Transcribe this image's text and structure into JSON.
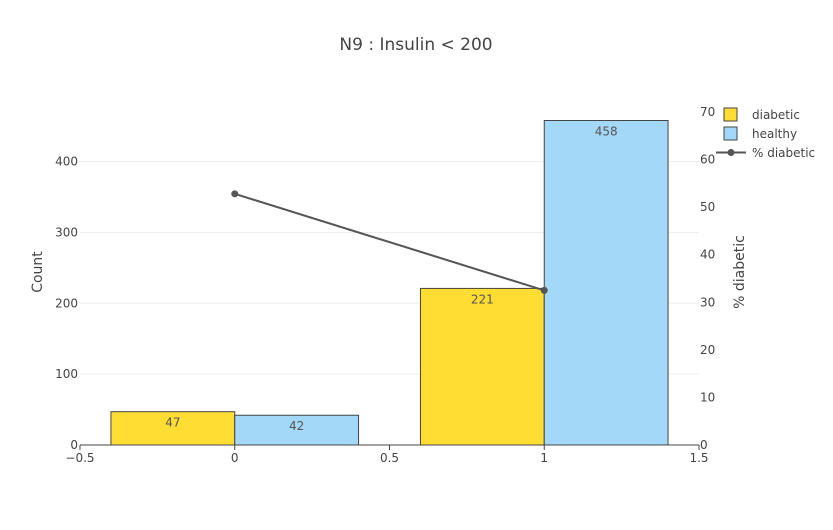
{
  "chart_data": {
    "type": "bar",
    "title": "N9 : Insulin < 200",
    "xlabel": "",
    "ylabel": "Count",
    "y2label": "% diabetic",
    "xlim": [
      -0.5,
      1.5
    ],
    "ylim": [
      0,
      470
    ],
    "y2lim": [
      0,
      70
    ],
    "x_ticks": [
      -0.5,
      0,
      0.5,
      1,
      1.5
    ],
    "x_tick_labels": [
      "−0.5",
      "0",
      "0.5",
      "1",
      "1.5"
    ],
    "y_ticks": [
      0,
      100,
      200,
      300,
      400
    ],
    "y2_ticks": [
      0,
      10,
      20,
      30,
      40,
      50,
      60,
      70
    ],
    "grid": true,
    "legend_position": "top-right",
    "x": [
      0,
      1
    ],
    "series": [
      {
        "name": "diabetic",
        "kind": "bar",
        "values": [
          47,
          221
        ],
        "color": "#FFDD33"
      },
      {
        "name": "healthy",
        "kind": "bar",
        "values": [
          42,
          458
        ],
        "color": "#A3D8F8"
      },
      {
        "name": "% diabetic",
        "kind": "line",
        "axis": "y2",
        "values": [
          52.8,
          32.5
        ],
        "color": "#555555"
      }
    ]
  }
}
